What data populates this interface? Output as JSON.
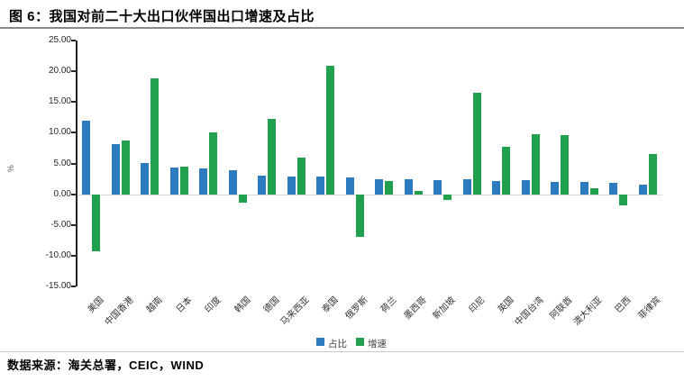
{
  "header": {
    "title": "图 6：我国对前二十大出口伙伴国出口增速及占比"
  },
  "footer": {
    "source": "数据来源：海关总署，CEIC，WIND"
  },
  "chart_data": {
    "type": "bar",
    "title": "我国对前二十大出口伙伴国出口增速及占比",
    "xlabel": "",
    "ylabel": "%",
    "ylim": [
      -15,
      25
    ],
    "y_ticks": [
      25,
      20,
      15,
      10,
      5,
      0,
      -5,
      -10,
      -15
    ],
    "y_tick_labels": [
      "25.00",
      "20.00",
      "15.00",
      "10.00",
      "5.00",
      "0.00",
      "-5.00",
      "-10.00",
      "-15.00"
    ],
    "grid": "zero-line-only",
    "legend_position": "bottom-center",
    "categories": [
      "美国",
      "中国香港",
      "越南",
      "日本",
      "印度",
      "韩国",
      "德国",
      "马来西亚",
      "泰国",
      "俄罗斯",
      "荷兰",
      "墨西哥",
      "新加坡",
      "印尼",
      "英国",
      "中国台湾",
      "阿联酋",
      "澳大利亚",
      "巴西",
      "菲律宾"
    ],
    "series": [
      {
        "name": "占比",
        "color": "#2B7BBE",
        "values": [
          12.0,
          8.2,
          5.1,
          4.4,
          4.2,
          3.9,
          3.1,
          2.9,
          2.9,
          2.7,
          2.5,
          2.4,
          2.3,
          2.4,
          2.2,
          2.3,
          2.0,
          2.0,
          1.8,
          1.6
        ]
      },
      {
        "name": "增速",
        "color": "#21A14E",
        "values": [
          -9.3,
          8.8,
          18.9,
          4.5,
          10.0,
          -1.4,
          12.3,
          6.0,
          20.9,
          -7.0,
          2.2,
          0.5,
          -1.0,
          16.5,
          7.7,
          9.7,
          9.6,
          1.0,
          -1.8,
          6.5
        ]
      }
    ]
  }
}
